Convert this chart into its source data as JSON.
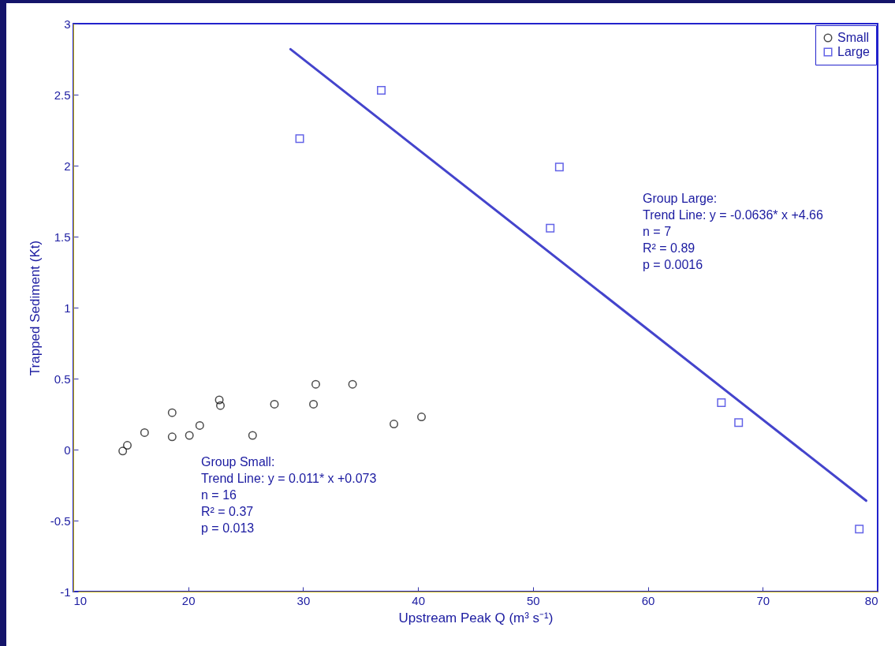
{
  "chart_data": {
    "type": "scatter",
    "xlabel": "Upstream Peak Q (m³ s⁻¹)",
    "ylabel": "Trapped Sediment (Kt)",
    "xlim": [
      10,
      80
    ],
    "xticks": [
      10,
      20,
      30,
      40,
      50,
      60,
      70,
      80
    ],
    "ylim": [
      -1,
      3
    ],
    "yticks": [
      -1,
      -0.5,
      0,
      0.5,
      1,
      1.5,
      2,
      2.5,
      3
    ],
    "grid": false,
    "legend": "top right",
    "series": [
      {
        "name": "Small",
        "type": "scatter",
        "marker": "circle",
        "color": "#000000",
        "x": [
          14.3,
          14.7,
          16.2,
          18.6,
          18.6,
          20.1,
          21.0,
          22.7,
          22.8,
          25.6,
          27.5,
          30.9,
          31.1,
          34.3,
          37.9,
          40.3
        ],
        "values": [
          -0.01,
          0.03,
          0.12,
          0.26,
          0.09,
          0.1,
          0.17,
          0.35,
          0.31,
          0.1,
          0.32,
          0.32,
          0.46,
          0.46,
          0.18,
          0.23
        ]
      },
      {
        "name": "Large",
        "type": "scatter",
        "marker": "square",
        "color": "#2222dd",
        "x": [
          29.7,
          36.8,
          52.3,
          51.5,
          66.4,
          67.9,
          78.4
        ],
        "values": [
          2.19,
          2.53,
          1.99,
          1.56,
          0.33,
          0.19,
          -0.56
        ]
      },
      {
        "type": "line",
        "color": "#4444cc",
        "x": [
          28.9,
          79.0
        ],
        "values": [
          2.82,
          -0.36
        ]
      }
    ],
    "annotations": [
      "Group Large:",
      "Trend Line: y = -0.0636* x +4.66",
      "n = 7",
      "R² = 0.89",
      "p = 0.0016",
      "Group Small:",
      "Trend Line: y = 0.011* x +0.073",
      "n = 16",
      "R² = 0.37",
      "p = 0.013"
    ]
  }
}
